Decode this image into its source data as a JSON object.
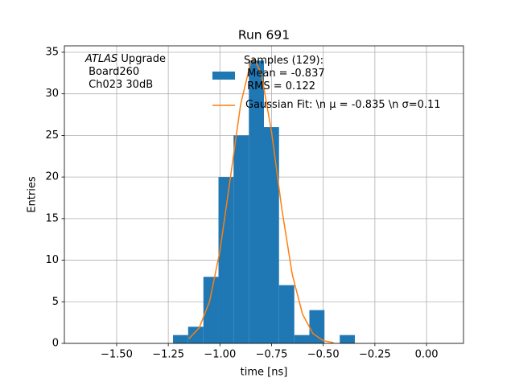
{
  "chart_data": {
    "type": "histogram",
    "title": "Run 691",
    "xlabel": "time [ns]",
    "ylabel": "Entries",
    "annotation": [
      "ATLAS",
      "Upgrade",
      "Board260",
      "Ch023 30dB"
    ],
    "bins": [
      -1.227,
      -1.154,
      -1.08,
      -1.007,
      -0.934,
      -0.86,
      -0.787,
      -0.714,
      -0.64,
      -0.567,
      -0.494,
      -0.42,
      -0.347
    ],
    "series": [
      {
        "name": "Samples (129):\n Mean = -0.837\n RMS = 0.122",
        "color": "#1f77b4",
        "values": [
          1,
          2,
          8,
          20,
          25,
          34,
          26,
          7,
          1,
          4,
          0,
          1
        ]
      },
      {
        "name": "Gaussian Fit: \\n μ = -0.835 \\n σ=0.11",
        "color": "#ff7f0e",
        "type": "line",
        "x": [
          -1.15,
          -1.1,
          -1.05,
          -1.0,
          -0.95,
          -0.9,
          -0.85,
          -0.835,
          -0.8,
          -0.75,
          -0.7,
          -0.65,
          -0.6,
          -0.55,
          -0.5,
          -0.45
        ],
        "values": [
          0.57,
          1.88,
          5.06,
          11.1,
          19.8,
          28.7,
          33.9,
          34.2,
          32.5,
          25.4,
          16.1,
          8.3,
          3.5,
          1.19,
          0.33,
          0.08
        ]
      }
    ],
    "xlim": [
      -1.753,
      0.179
    ],
    "ylim": [
      0,
      35.77
    ],
    "xticks": [
      {
        "value": -1.5,
        "label": "−1.50"
      },
      {
        "value": -1.25,
        "label": "−1.25"
      },
      {
        "value": -1.0,
        "label": "−1.00"
      },
      {
        "value": -0.75,
        "label": "−0.75"
      },
      {
        "value": -0.5,
        "label": "−0.50"
      },
      {
        "value": -0.25,
        "label": "−0.25"
      },
      {
        "value": 0,
        "label": "0.00"
      }
    ],
    "yticks": [
      0,
      5,
      10,
      15,
      20,
      25,
      30,
      35
    ],
    "grid": true
  }
}
